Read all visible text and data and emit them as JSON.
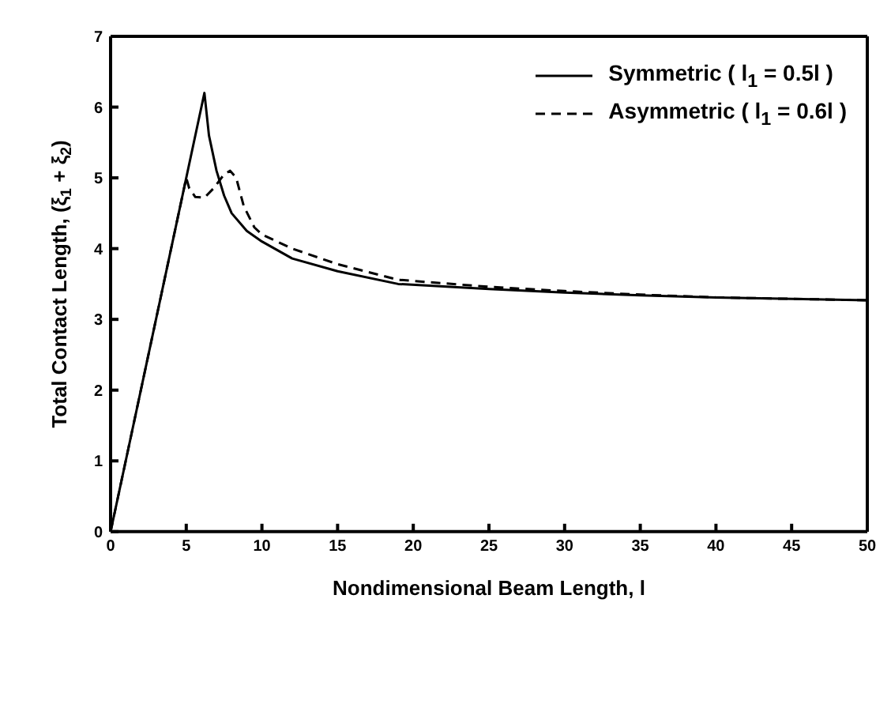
{
  "chart_data": {
    "type": "line",
    "xlabel": "Nondimensional Beam Length,  l",
    "ylabel": "Total Contact Length,  (ξ$_{1}$ + ξ$_{2}$)",
    "xlim": [
      0,
      50
    ],
    "ylim": [
      0,
      7
    ],
    "xticks": [
      0,
      5,
      10,
      15,
      20,
      25,
      30,
      35,
      40,
      45,
      50
    ],
    "yticks": [
      0,
      1,
      2,
      3,
      4,
      5,
      6,
      7
    ],
    "legend": "top right",
    "marker": "none",
    "series": [
      {
        "name": "Symmetric ( l$_{1}$ = 0.5l )",
        "color": "#000000",
        "line_style": "solid",
        "x": [
          0,
          6.2,
          6.5,
          7,
          7.5,
          8,
          9,
          10,
          12,
          15,
          19,
          25,
          30,
          35,
          40,
          45,
          50
        ],
        "values": [
          0,
          6.2,
          5.6,
          5.1,
          4.75,
          4.5,
          4.25,
          4.1,
          3.86,
          3.68,
          3.5,
          3.43,
          3.38,
          3.34,
          3.31,
          3.29,
          3.27
        ]
      },
      {
        "name": "Asymmetric ( l$_{1}$ = 0.6l )",
        "color": "#000000",
        "line_style": "dashed",
        "x": [
          0,
          5.0,
          5.2,
          5.6,
          6.2,
          6.8,
          7.5,
          7.9,
          8.3,
          8.8,
          9.5,
          10,
          11,
          12,
          15,
          19,
          25,
          30,
          35,
          40,
          45,
          50
        ],
        "values": [
          0,
          5.0,
          4.85,
          4.73,
          4.72,
          4.85,
          5.05,
          5.1,
          5.0,
          4.6,
          4.3,
          4.2,
          4.1,
          4.0,
          3.78,
          3.56,
          3.46,
          3.4,
          3.35,
          3.31,
          3.29,
          3.27
        ]
      }
    ]
  }
}
